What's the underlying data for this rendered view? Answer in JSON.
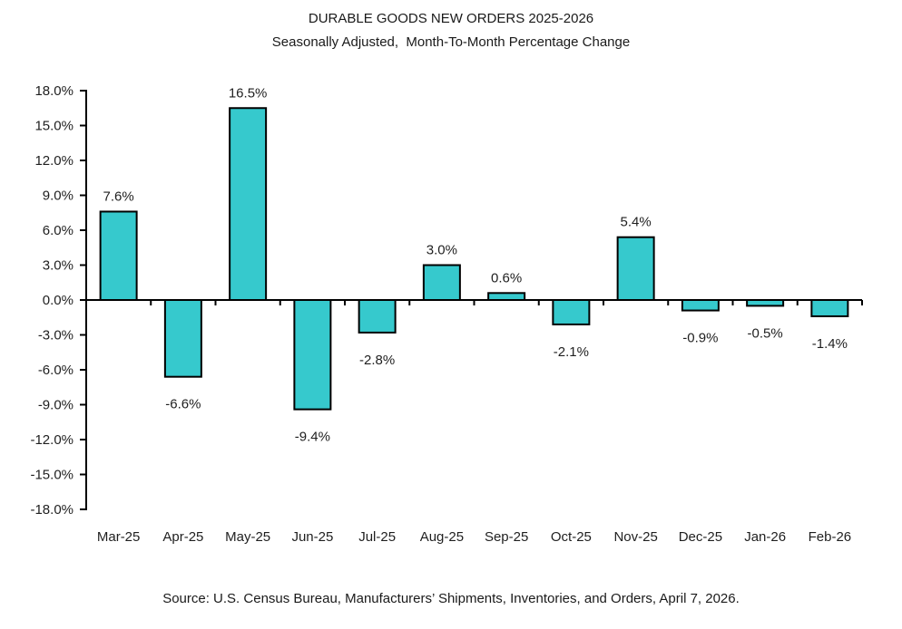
{
  "header": {
    "title": "DURABLE GOODS NEW ORDERS 2025-2026",
    "subtitle": "Seasonally Adjusted,  Month-To-Month Percentage Change"
  },
  "footer": {
    "source": "Source: U.S. Census Bureau, Manufacturers’ Shipments, Inventories, and Orders, April 7, 2026."
  },
  "colors": {
    "bar_fill": "#36C9CD",
    "bar_border": "#000000",
    "axis": "#000000",
    "text": "#1F1F1F"
  },
  "chart_data": {
    "type": "bar",
    "title": "DURABLE GOODS NEW ORDERS 2025-2026",
    "subtitle": "Seasonally Adjusted,  Month-To-Month Percentage Change",
    "categories": [
      "Mar-25",
      "Apr-25",
      "May-25",
      "Jun-25",
      "Jul-25",
      "Aug-25",
      "Sep-25",
      "Oct-25",
      "Nov-25",
      "Dec-25",
      "Jan-26",
      "Feb-26"
    ],
    "values": [
      7.6,
      -6.6,
      16.5,
      -9.4,
      -2.8,
      3.0,
      0.6,
      -2.1,
      5.4,
      -0.9,
      -0.5,
      -1.4
    ],
    "value_labels": [
      "7.6%",
      "-6.6%",
      "16.5%",
      "-9.4%",
      "-2.8%",
      "3.0%",
      "0.6%",
      "-2.1%",
      "5.4%",
      "-0.9%",
      "-0.5%",
      "-1.4%"
    ],
    "xlabel": "",
    "ylabel": "",
    "ylim": [
      -18,
      18
    ],
    "ytick_step": 3,
    "ytick_labels": [
      "18.0%",
      "15.0%",
      "12.0%",
      "9.0%",
      "6.0%",
      "3.0%",
      "0.0%",
      "-3.0%",
      "-6.0%",
      "-9.0%",
      "-12.0%",
      "-15.0%",
      "-18.0%"
    ],
    "grid": false,
    "legend": false
  }
}
